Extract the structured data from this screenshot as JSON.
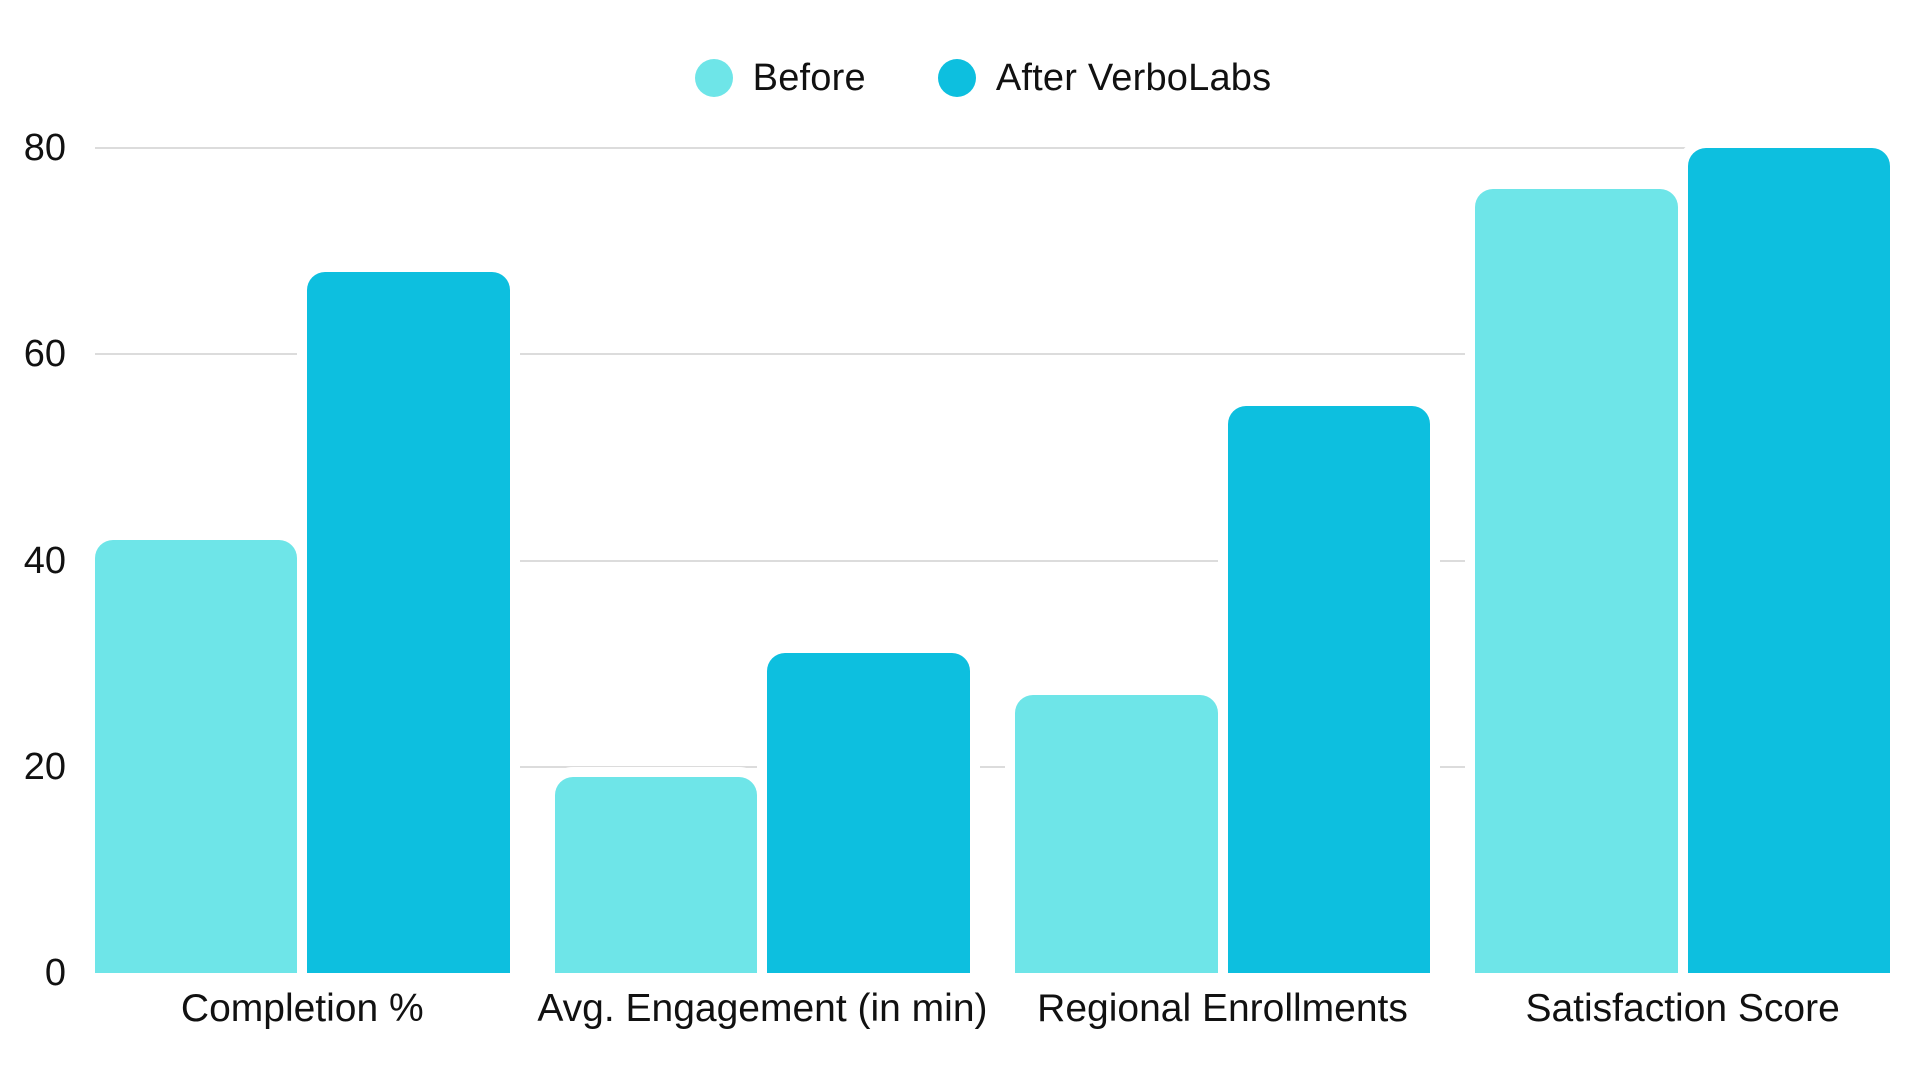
{
  "chart_data": {
    "type": "bar",
    "title": "",
    "xlabel": "",
    "ylabel": "",
    "categories": [
      "Completion %",
      "Avg. Engagement (in min)",
      "Regional Enrollments",
      "Satisfaction Score"
    ],
    "series": [
      {
        "name": "Before",
        "color": "#6EE5E8",
        "values": [
          42,
          19,
          27,
          76
        ]
      },
      {
        "name": "After VerboLabs",
        "color": "#0DBFDF",
        "values": [
          68,
          31,
          55,
          80
        ]
      }
    ],
    "ylim": [
      0,
      80
    ],
    "yticks": [
      0,
      20,
      40,
      60,
      80
    ],
    "grid": true,
    "legend_position": "top"
  },
  "style": {
    "background": "#ffffff",
    "gridline_color": "#dcdcdc",
    "text_color": "#111111"
  }
}
